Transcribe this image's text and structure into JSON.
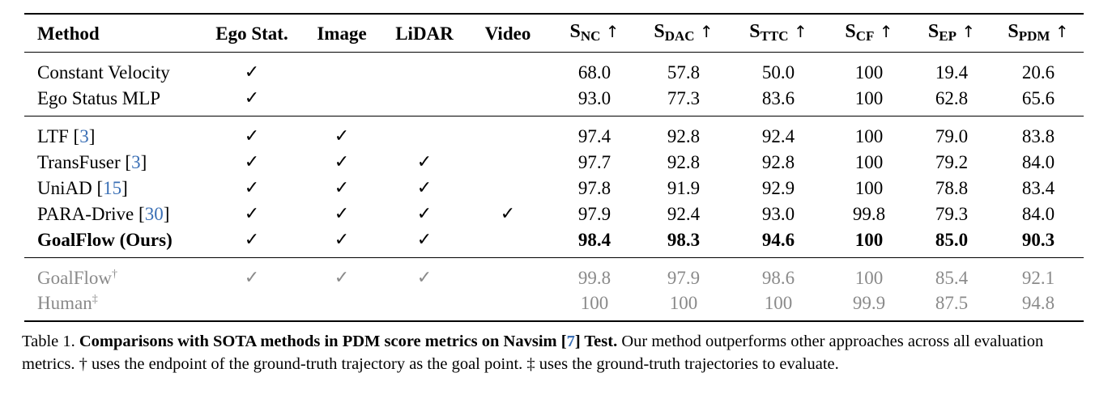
{
  "columns": {
    "method": "Method",
    "ego_stat": "Ego Stat.",
    "image": "Image",
    "lidar": "LiDAR",
    "video": "Video",
    "metric_s": "S",
    "metrics": [
      "NC",
      "DAC",
      "TTC",
      "CF",
      "EP",
      "PDM"
    ],
    "arrow": "↑"
  },
  "check": "✓",
  "rows": [
    {
      "method": "Constant Velocity",
      "ref": "",
      "sup": "",
      "ego": true,
      "image": false,
      "lidar": false,
      "video": false,
      "values": [
        "68.0",
        "57.8",
        "50.0",
        "100",
        "19.4",
        "20.6"
      ]
    },
    {
      "method": "Ego Status MLP",
      "ref": "",
      "sup": "",
      "ego": true,
      "image": false,
      "lidar": false,
      "video": false,
      "values": [
        "93.0",
        "77.3",
        "83.6",
        "100",
        "62.8",
        "65.6"
      ]
    },
    {
      "method": "LTF",
      "ref": "3",
      "sup": "",
      "ego": true,
      "image": true,
      "lidar": false,
      "video": false,
      "values": [
        "97.4",
        "92.8",
        "92.4",
        "100",
        "79.0",
        "83.8"
      ]
    },
    {
      "method": "TransFuser",
      "ref": "3",
      "sup": "",
      "ego": true,
      "image": true,
      "lidar": true,
      "video": false,
      "values": [
        "97.7",
        "92.8",
        "92.8",
        "100",
        "79.2",
        "84.0"
      ]
    },
    {
      "method": "UniAD",
      "ref": "15",
      "sup": "",
      "ego": true,
      "image": true,
      "lidar": true,
      "video": false,
      "values": [
        "97.8",
        "91.9",
        "92.9",
        "100",
        "78.8",
        "83.4"
      ]
    },
    {
      "method": "PARA-Drive",
      "ref": "30",
      "sup": "",
      "ego": true,
      "image": true,
      "lidar": true,
      "video": true,
      "values": [
        "97.9",
        "92.4",
        "93.0",
        "99.8",
        "79.3",
        "84.0"
      ]
    },
    {
      "method": "GoalFlow (Ours)",
      "ref": "",
      "sup": "",
      "ego": true,
      "image": true,
      "lidar": true,
      "video": false,
      "values": [
        "98.4",
        "98.3",
        "94.6",
        "100",
        "85.0",
        "90.3"
      ]
    },
    {
      "method": "GoalFlow",
      "ref": "",
      "sup": "†",
      "ego": true,
      "image": true,
      "lidar": true,
      "video": false,
      "values": [
        "99.8",
        "97.9",
        "98.6",
        "100",
        "85.4",
        "92.1"
      ]
    },
    {
      "method": "Human",
      "ref": "",
      "sup": "‡",
      "ego": false,
      "image": false,
      "lidar": false,
      "video": false,
      "values": [
        "100",
        "100",
        "100",
        "99.9",
        "87.5",
        "94.8"
      ]
    }
  ],
  "caption": {
    "label": "Table 1.",
    "bold_pre": "Comparisons with SOTA methods in PDM score metrics on Navsim [",
    "bold_ref": "7",
    "bold_post": "] Test.",
    "rest": "Our method outperforms other approaches across all evaluation metrics. † uses the endpoint of the ground-truth trajectory as the goal point. ‡ uses the ground-truth trajectories to evaluate."
  }
}
